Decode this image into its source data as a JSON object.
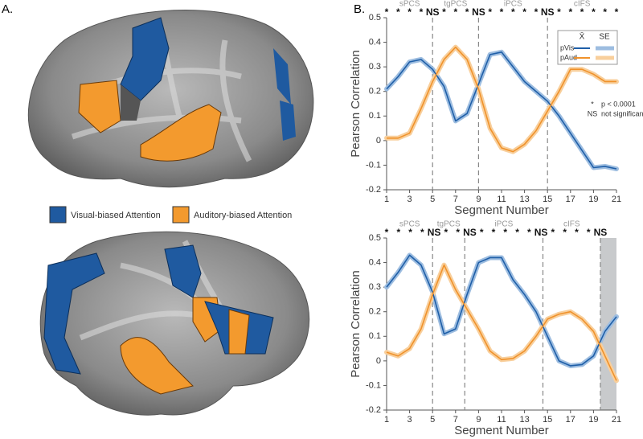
{
  "panels": [
    "A.",
    "B."
  ],
  "brain_legend": [
    {
      "label": "Visual-biased Attention",
      "color": "#1f5aa0"
    },
    {
      "label": "Auditory-biased Attention",
      "color": "#f39a2e"
    }
  ],
  "chart_data": [
    {
      "type": "line",
      "x": [
        1,
        2,
        3,
        4,
        5,
        6,
        7,
        8,
        9,
        10,
        11,
        12,
        13,
        14,
        15,
        16,
        17,
        18,
        19,
        20,
        21
      ],
      "xlim": [
        1,
        21
      ],
      "ylim": [
        -0.2,
        0.5
      ],
      "xticks": [
        1,
        3,
        5,
        7,
        9,
        11,
        13,
        15,
        17,
        19,
        21
      ],
      "yticks": [
        -0.2,
        -0.1,
        0,
        0.1,
        0.2,
        0.3,
        0.4,
        0.5
      ],
      "xlabel": "Segment Number",
      "ylabel": "Pearson Correlation",
      "boundaries": [
        5,
        9,
        15
      ],
      "region_labels": [
        "sPCS",
        "tgPCS",
        "iPCS",
        "cIFS"
      ],
      "significance": [
        "*",
        "*",
        "*",
        "*",
        "NS",
        "*",
        "*",
        "*",
        "NS",
        "*",
        "*",
        "*",
        "*",
        "*",
        "NS",
        "*",
        "*",
        "*",
        "*",
        "*",
        "*"
      ],
      "series": [
        {
          "name": "pVis",
          "color": "#1f5fa8",
          "se_color": "#9dbde0",
          "values": [
            0.21,
            0.26,
            0.32,
            0.33,
            0.29,
            0.22,
            0.08,
            0.11,
            0.23,
            0.35,
            0.36,
            0.3,
            0.24,
            0.2,
            0.16,
            0.1,
            0.03,
            -0.04,
            -0.11,
            -0.105,
            -0.115
          ]
        },
        {
          "name": "pAud",
          "color": "#f0922b",
          "se_color": "#f8cf9c",
          "values": [
            0.01,
            0.01,
            0.03,
            0.13,
            0.24,
            0.33,
            0.38,
            0.33,
            0.21,
            0.05,
            -0.03,
            -0.045,
            -0.015,
            0.04,
            0.12,
            0.2,
            0.29,
            0.29,
            0.27,
            0.24,
            0.24
          ]
        }
      ],
      "legend": {
        "headers": [
          "X̄",
          "SE"
        ]
      },
      "annotations": [
        {
          "symbol": "*",
          "text": "p < 0.0001"
        },
        {
          "symbol": "NS",
          "text": "not significant"
        }
      ]
    },
    {
      "type": "line",
      "x": [
        1,
        2,
        3,
        4,
        5,
        6,
        7,
        8,
        9,
        10,
        11,
        12,
        13,
        14,
        15,
        16,
        17,
        18,
        19,
        20,
        21
      ],
      "xlim": [
        1,
        21
      ],
      "ylim": [
        -0.2,
        0.5
      ],
      "xticks": [
        1,
        3,
        5,
        7,
        9,
        11,
        13,
        15,
        17,
        19,
        21
      ],
      "yticks": [
        -0.2,
        -0.1,
        0,
        0.1,
        0.2,
        0.3,
        0.4,
        0.5
      ],
      "xlabel": "Segment Number",
      "ylabel": "Pearson Correlation",
      "boundaries": [
        5,
        7.8,
        14.6,
        19.6
      ],
      "shade": [
        19.6,
        21
      ],
      "region_labels": [
        "sPCS",
        "tgPCS",
        "iPCS",
        "cIFS"
      ],
      "significance": [
        "*",
        "*",
        "*",
        "*",
        "NS",
        "*",
        "*",
        "NS",
        "*",
        "*",
        "*",
        "*",
        "*",
        "NS",
        "*",
        "*",
        "*",
        "*",
        "NS"
      ],
      "series": [
        {
          "name": "pVis",
          "color": "#1f5fa8",
          "se_color": "#9dbde0",
          "values": [
            0.3,
            0.36,
            0.43,
            0.39,
            0.28,
            0.11,
            0.13,
            0.27,
            0.4,
            0.42,
            0.42,
            0.33,
            0.27,
            0.2,
            0.1,
            0.0,
            -0.02,
            -0.015,
            0.02,
            0.12,
            0.18
          ]
        },
        {
          "name": "pAud",
          "color": "#f0922b",
          "se_color": "#f8cf9c",
          "values": [
            0.035,
            0.02,
            0.05,
            0.13,
            0.27,
            0.39,
            0.29,
            0.21,
            0.13,
            0.04,
            0.005,
            0.01,
            0.04,
            0.1,
            0.17,
            0.19,
            0.2,
            0.17,
            0.12,
            0.02,
            -0.08
          ]
        }
      ]
    }
  ]
}
